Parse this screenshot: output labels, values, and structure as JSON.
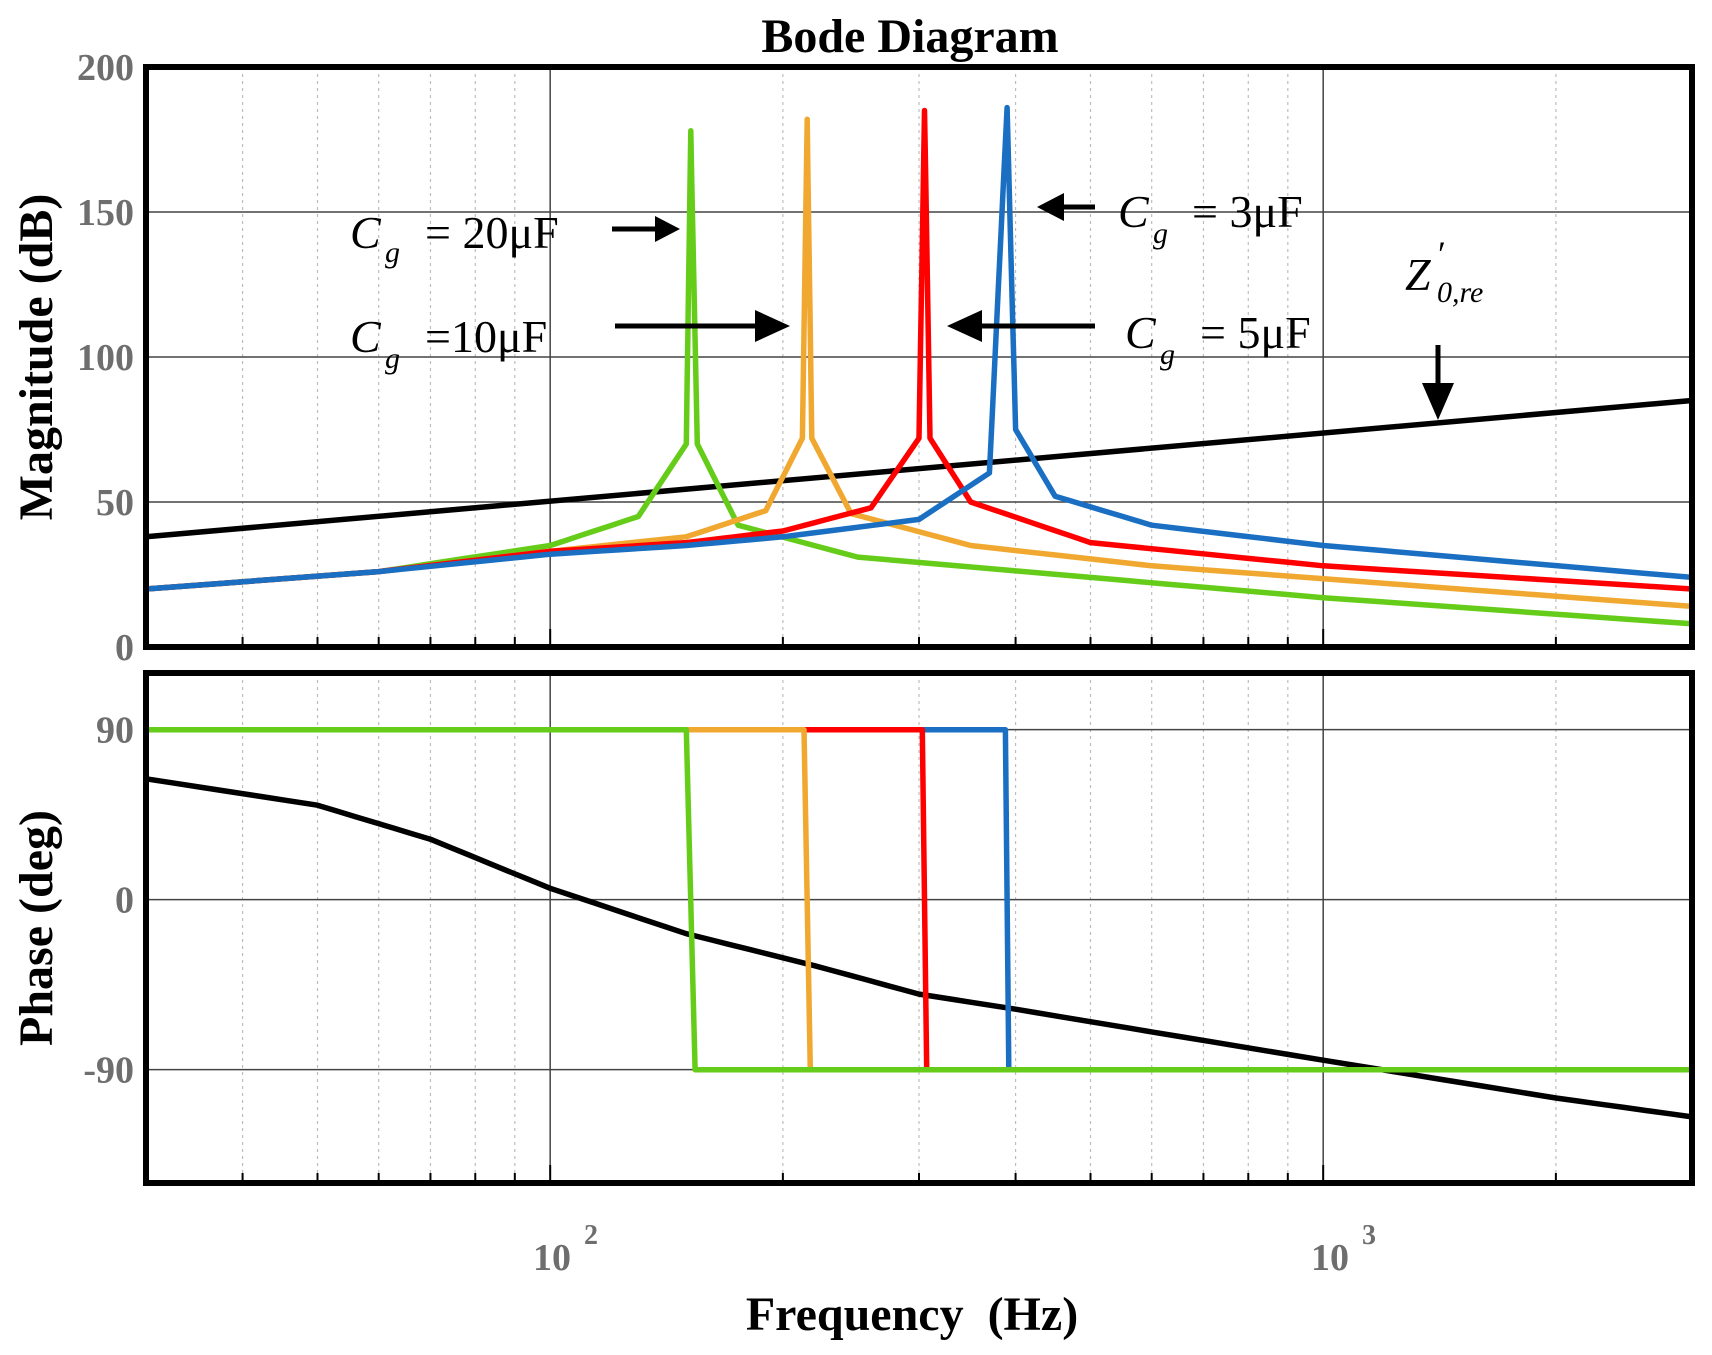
{
  "chart_data": {
    "type": "line",
    "title": "Bode Diagram",
    "xlabel": "Frequency  (Hz)",
    "xscale": "log",
    "xlim": [
      30,
      3000
    ],
    "x_tick_labels": [
      {
        "value": 100,
        "base": "10",
        "exp": "2"
      },
      {
        "value": 1000,
        "base": "10",
        "exp": "3"
      }
    ],
    "grid": true,
    "panels": [
      {
        "name": "magnitude",
        "ylabel": "Magnitude (dB)",
        "ylim": [
          0,
          200
        ],
        "y_ticks": [
          0,
          50,
          100,
          150,
          200
        ],
        "series": [
          {
            "name": "Z'0,re",
            "color": "#000000",
            "x": [
              30,
              3000
            ],
            "values": [
              38,
              85
            ]
          },
          {
            "name": "Cg = 20μF",
            "color": "#66cc1a",
            "resonance_hz": 152,
            "peak_db": 178,
            "x": [
              30,
              60,
              100,
              130,
              150,
              152,
              155,
              175,
              250,
              500,
              1000,
              3000
            ],
            "values": [
              20,
              26,
              35,
              45,
              70,
              178,
              70,
              42,
              31,
              24,
              17,
              8
            ]
          },
          {
            "name": "Cg = 10μF",
            "color": "#f0a830",
            "resonance_hz": 215,
            "peak_db": 182,
            "x": [
              30,
              60,
              100,
              150,
              190,
              212,
              215,
              218,
              245,
              350,
              600,
              1500,
              3000
            ],
            "values": [
              20,
              26,
              33,
              38,
              47,
              72,
              182,
              72,
              46,
              35,
              28,
              20,
              14
            ]
          },
          {
            "name": "Cg = 5μF",
            "color": "#ff0000",
            "resonance_hz": 305,
            "peak_db": 185,
            "x": [
              30,
              60,
              100,
              150,
              200,
              260,
              300,
              305,
              310,
              350,
              500,
              1000,
              3000
            ],
            "values": [
              20,
              26,
              33,
              36,
              40,
              48,
              72,
              185,
              72,
              50,
              36,
              28,
              20
            ]
          },
          {
            "name": "Cg = 3μF",
            "color": "#1a6fc2",
            "resonance_hz": 390,
            "peak_db": 186,
            "x": [
              30,
              60,
              100,
              150,
              200,
              300,
              370,
              390,
              400,
              450,
              600,
              1000,
              3000
            ],
            "values": [
              20,
              26,
              32,
              35,
              38,
              44,
              60,
              186,
              75,
              52,
              42,
              35,
              24
            ]
          }
        ]
      },
      {
        "name": "phase",
        "ylabel": "Phase (deg)",
        "ylim": [
          -150,
          120
        ],
        "y_ticks": [
          -90,
          0,
          90
        ],
        "series": [
          {
            "name": "Z'0,re",
            "color": "#000000",
            "x": [
              30,
              50,
              70,
              100,
              150,
              220,
              300,
              400,
              600,
              1000,
              2000,
              3000
            ],
            "values": [
              64,
              50,
              32,
              6,
              -18,
              -35,
              -50,
              -58,
              -70,
              -85,
              -105,
              -115
            ]
          },
          {
            "name": "Cg = 3μF",
            "color": "#1a6fc2",
            "x": [
              30,
              388,
              392,
              3000
            ],
            "values": [
              90,
              90,
              -90,
              -90
            ]
          },
          {
            "name": "Cg = 5μF",
            "color": "#ff0000",
            "x": [
              30,
              303,
              307,
              3000
            ],
            "values": [
              90,
              90,
              -90,
              -90
            ]
          },
          {
            "name": "Cg = 10μF",
            "color": "#f0a830",
            "x": [
              30,
              213,
              217,
              3000
            ],
            "values": [
              90,
              90,
              -90,
              -90
            ]
          },
          {
            "name": "Cg = 20μF",
            "color": "#66cc1a",
            "x": [
              30,
              150,
              154,
              3000
            ],
            "values": [
              90,
              90,
              -90,
              -90
            ]
          }
        ]
      }
    ],
    "annotations": [
      {
        "id": "cg20",
        "text_main": "C",
        "text_sub": "g",
        "text_value": "= 20μF",
        "arrow_direction": "right",
        "arrow_target_hz": 152,
        "arrow_target_db": 150
      },
      {
        "id": "cg10",
        "text_main": "C",
        "text_sub": "g",
        "text_value": "=10μF",
        "arrow_direction": "right",
        "arrow_target_hz": 205,
        "arrow_target_db": 117
      },
      {
        "id": "cg3",
        "text_main": "C",
        "text_sub": "g",
        "text_value": "= 3μF",
        "arrow_direction": "left",
        "arrow_target_hz": 405,
        "arrow_target_db": 161
      },
      {
        "id": "cg5",
        "text_main": "C",
        "text_sub": "g",
        "text_value": "= 5μF",
        "arrow_direction": "left",
        "arrow_target_hz": 320,
        "arrow_target_db": 117
      },
      {
        "id": "z0re",
        "text_main": "Z",
        "text_sup": "′",
        "text_sub": "0,re",
        "arrow_direction": "down",
        "arrow_target_hz": 1480,
        "arrow_target_db": 83
      }
    ]
  }
}
